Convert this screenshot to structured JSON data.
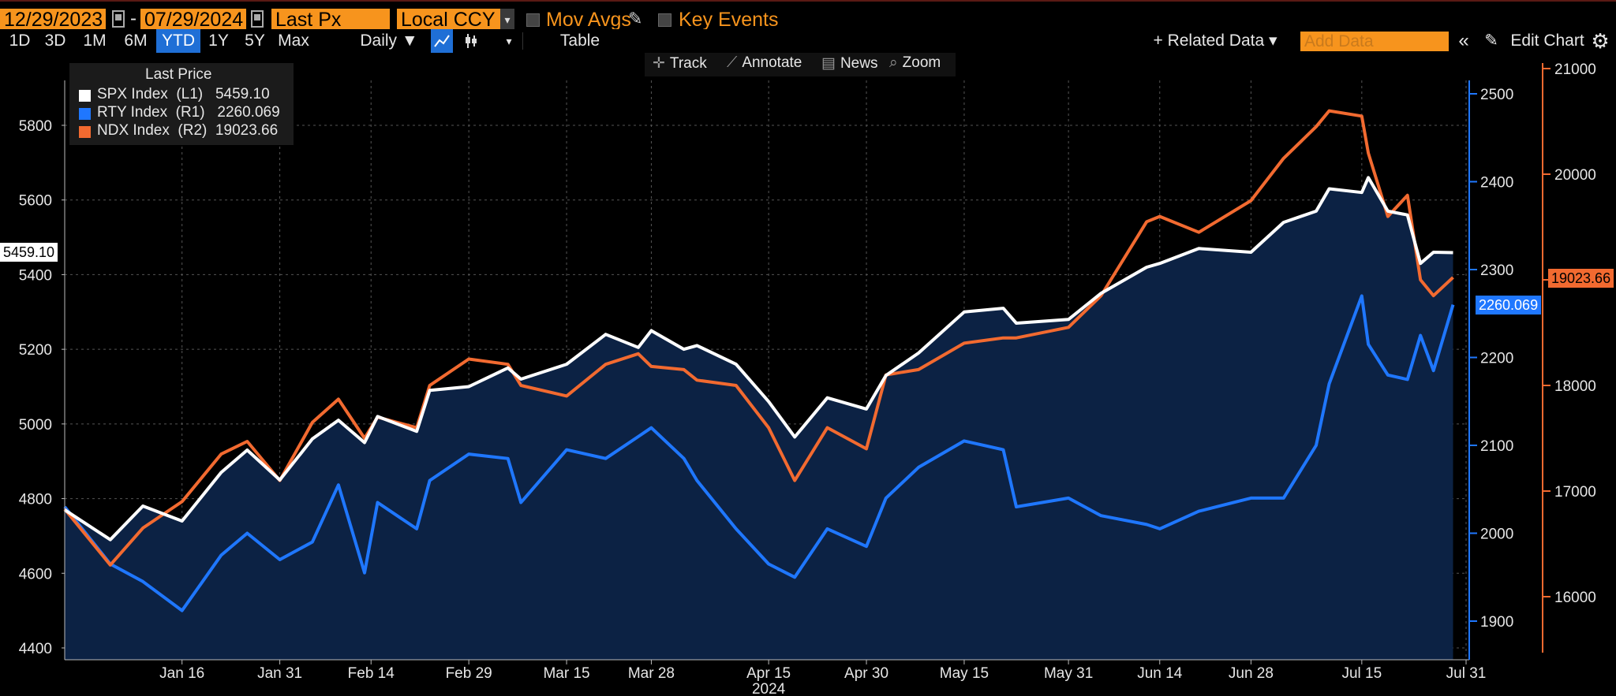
{
  "toolbar": {
    "start_date": "12/29/2023",
    "end_date": "07/29/2024",
    "date_separator": "-",
    "field": "Last Px",
    "currency": "Local CCY",
    "mov_avgs": "Mov Avgs",
    "key_events": "Key Events"
  },
  "periods": [
    "1D",
    "3D",
    "1M",
    "6M",
    "YTD",
    "1Y",
    "5Y",
    "Max"
  ],
  "active_period": "YTD",
  "frequency": "Daily ▼",
  "table_label": "Table",
  "related_data": "+ Related Data ▾",
  "add_data_placeholder": "Add Data",
  "edit_chart": "Edit Chart",
  "tools": {
    "track": "Track",
    "annotate": "Annotate",
    "news": "News",
    "zoom": "Zoom"
  },
  "legend": {
    "title": "Last Price",
    "rows": [
      {
        "text": "SPX Index  (L1)   5459.10",
        "color": "#ffffff"
      },
      {
        "text": "RTY Index  (R1)   2260.069",
        "color": "#1f77ff"
      },
      {
        "text": "NDX Index  (R2)  19023.66",
        "color": "#f26a30"
      }
    ]
  },
  "price_tags": {
    "spx": "5459.10",
    "rty": "2260.069",
    "ndx": "19023.66"
  },
  "colors": {
    "spx": "#ffffff",
    "rty": "#1f77ff",
    "ndx": "#f26a30",
    "area": "#0c2244",
    "background": "#000000",
    "accent": "#f7941d"
  },
  "icons": [
    "calendar-icon",
    "pencil-icon",
    "line-chart-icon",
    "candlestick-icon",
    "crosshair-icon",
    "annotate-icon",
    "news-icon",
    "zoom-icon",
    "collapse-icon",
    "settings-icon"
  ],
  "chart_data": {
    "type": "line",
    "x_tick_labels": [
      "Jan 16",
      "Jan 31",
      "Feb 14",
      "Feb 29",
      "Mar 15",
      "Mar 28",
      "Apr 15",
      "Apr 30",
      "May 15",
      "May 31",
      "Jun 14",
      "Jun 28",
      "Jul 15",
      "Jul 31"
    ],
    "x_sublabel": "2024",
    "x_domain": [
      "2023-12-29",
      "2024-07-31"
    ],
    "axes": {
      "L1": {
        "range": [
          4380,
          5960
        ],
        "ticks": [
          4400,
          4600,
          4800,
          5000,
          5200,
          5400,
          5600,
          5800
        ]
      },
      "R1": {
        "range": [
          1862,
          2545
        ],
        "ticks": [
          1900,
          2000,
          2100,
          2200,
          2300,
          2400,
          2500
        ]
      },
      "R2": {
        "range": [
          15450,
          21100
        ],
        "ticks": [
          16000,
          17000,
          18000,
          19000,
          20000,
          21000
        ]
      }
    },
    "series": [
      {
        "name": "SPX Index",
        "axis": "L1",
        "x": [
          "2023-12-29",
          "2024-01-05",
          "2024-01-10",
          "2024-01-16",
          "2024-01-22",
          "2024-01-26",
          "2024-01-31",
          "2024-02-05",
          "2024-02-09",
          "2024-02-13",
          "2024-02-15",
          "2024-02-21",
          "2024-02-23",
          "2024-02-29",
          "2024-03-06",
          "2024-03-08",
          "2024-03-15",
          "2024-03-21",
          "2024-03-26",
          "2024-03-28",
          "2024-04-02",
          "2024-04-04",
          "2024-04-10",
          "2024-04-15",
          "2024-04-19",
          "2024-04-24",
          "2024-04-30",
          "2024-05-03",
          "2024-05-08",
          "2024-05-15",
          "2024-05-21",
          "2024-05-23",
          "2024-05-31",
          "2024-06-05",
          "2024-06-12",
          "2024-06-14",
          "2024-06-20",
          "2024-06-28",
          "2024-07-03",
          "2024-07-08",
          "2024-07-10",
          "2024-07-15",
          "2024-07-16",
          "2024-07-19",
          "2024-07-22",
          "2024-07-24",
          "2024-07-26",
          "2024-07-29"
        ],
        "values": [
          4770,
          4690,
          4780,
          4740,
          4870,
          4930,
          4850,
          4960,
          5010,
          4950,
          5020,
          4980,
          5090,
          5100,
          5150,
          5120,
          5160,
          5240,
          5205,
          5250,
          5200,
          5210,
          5160,
          5060,
          4965,
          5070,
          5040,
          5130,
          5190,
          5300,
          5310,
          5270,
          5280,
          5350,
          5420,
          5430,
          5470,
          5460,
          5540,
          5570,
          5630,
          5620,
          5660,
          5570,
          5560,
          5430,
          5460,
          5459
        ]
      },
      {
        "name": "RTY Index",
        "axis": "R1",
        "x": [
          "2023-12-29",
          "2024-01-05",
          "2024-01-10",
          "2024-01-16",
          "2024-01-22",
          "2024-01-26",
          "2024-01-31",
          "2024-02-05",
          "2024-02-09",
          "2024-02-13",
          "2024-02-15",
          "2024-02-21",
          "2024-02-23",
          "2024-02-29",
          "2024-03-06",
          "2024-03-08",
          "2024-03-15",
          "2024-03-21",
          "2024-03-26",
          "2024-03-28",
          "2024-04-02",
          "2024-04-04",
          "2024-04-10",
          "2024-04-15",
          "2024-04-19",
          "2024-04-24",
          "2024-04-30",
          "2024-05-03",
          "2024-05-08",
          "2024-05-15",
          "2024-05-21",
          "2024-05-23",
          "2024-05-31",
          "2024-06-05",
          "2024-06-12",
          "2024-06-14",
          "2024-06-20",
          "2024-06-28",
          "2024-07-03",
          "2024-07-08",
          "2024-07-10",
          "2024-07-15",
          "2024-07-16",
          "2024-07-19",
          "2024-07-22",
          "2024-07-24",
          "2024-07-26",
          "2024-07-29"
        ],
        "values": [
          2030,
          1965,
          1945,
          1912,
          1975,
          2000,
          1970,
          1990,
          2055,
          1955,
          2035,
          2005,
          2060,
          2090,
          2085,
          2035,
          2095,
          2085,
          2110,
          2120,
          2085,
          2060,
          2005,
          1965,
          1950,
          2005,
          1985,
          2040,
          2075,
          2105,
          2095,
          2030,
          2040,
          2020,
          2010,
          2005,
          2025,
          2040,
          2040,
          2100,
          2170,
          2270,
          2215,
          2180,
          2175,
          2225,
          2185,
          2260
        ]
      },
      {
        "name": "NDX Index",
        "axis": "R2",
        "x": [
          "2023-12-29",
          "2024-01-05",
          "2024-01-10",
          "2024-01-16",
          "2024-01-22",
          "2024-01-26",
          "2024-01-31",
          "2024-02-05",
          "2024-02-09",
          "2024-02-13",
          "2024-02-15",
          "2024-02-21",
          "2024-02-23",
          "2024-02-29",
          "2024-03-06",
          "2024-03-08",
          "2024-03-15",
          "2024-03-21",
          "2024-03-26",
          "2024-03-28",
          "2024-04-02",
          "2024-04-04",
          "2024-04-10",
          "2024-04-15",
          "2024-04-19",
          "2024-04-24",
          "2024-04-30",
          "2024-05-03",
          "2024-05-08",
          "2024-05-15",
          "2024-05-21",
          "2024-05-23",
          "2024-05-31",
          "2024-06-05",
          "2024-06-12",
          "2024-06-14",
          "2024-06-20",
          "2024-06-28",
          "2024-07-03",
          "2024-07-08",
          "2024-07-10",
          "2024-07-15",
          "2024-07-16",
          "2024-07-19",
          "2024-07-22",
          "2024-07-24",
          "2024-07-26",
          "2024-07-29"
        ],
        "values": [
          16830,
          16300,
          16650,
          16900,
          17350,
          17470,
          17100,
          17650,
          17870,
          17500,
          17700,
          17600,
          18000,
          18250,
          18200,
          18000,
          17900,
          18200,
          18300,
          18180,
          18150,
          18050,
          18000,
          17600,
          17100,
          17600,
          17400,
          18100,
          18150,
          18400,
          18450,
          18450,
          18550,
          18850,
          19550,
          19600,
          19450,
          19750,
          20150,
          20450,
          20600,
          20550,
          20200,
          19600,
          19800,
          19000,
          18850,
          19023
        ]
      }
    ]
  }
}
